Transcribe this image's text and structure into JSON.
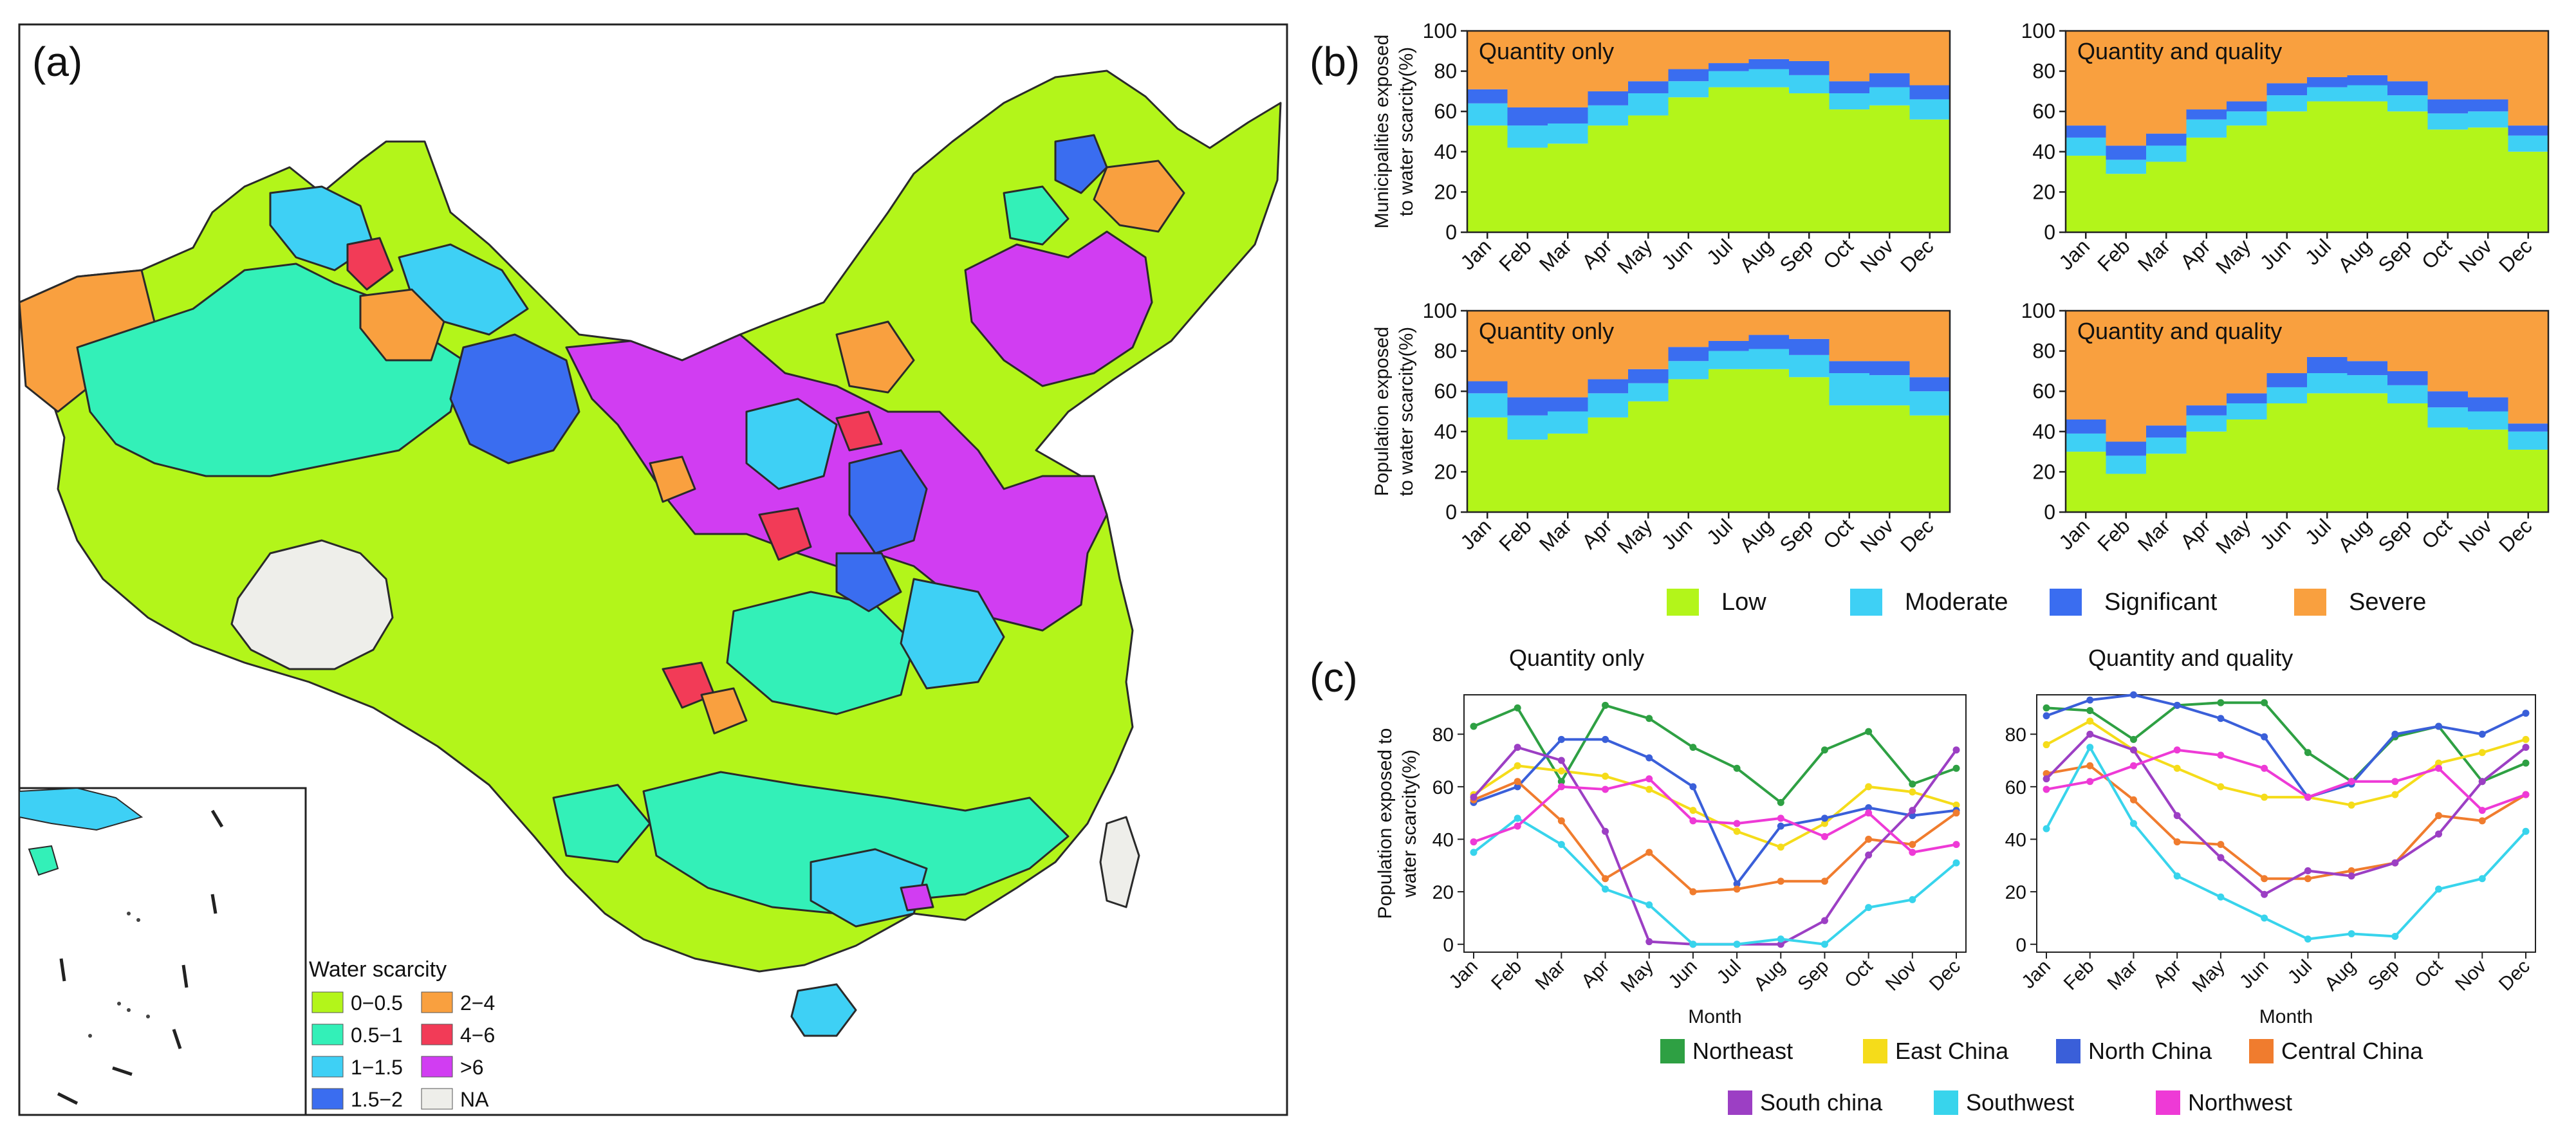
{
  "panel_labels": {
    "a": "(a)",
    "b": "(b)",
    "c": "(c)"
  },
  "map": {
    "legend_title": "Water scarcity",
    "legend_items": [
      {
        "label": "0−0.5",
        "color": "#b3f51a"
      },
      {
        "label": "2−4",
        "color": "#f9a03f"
      },
      {
        "label": "0.5−1",
        "color": "#33f0b8"
      },
      {
        "label": "4−6",
        "color": "#f23b57"
      },
      {
        "label": "1−1.5",
        "color": "#3ed0f5"
      },
      {
        "label": ">6",
        "color": "#d13df2"
      },
      {
        "label": "1.5−2",
        "color": "#3a6df0"
      },
      {
        "label": "NA",
        "color": "#eeeeea"
      }
    ]
  },
  "chart_data": [
    {
      "type": "bar",
      "stacked": true,
      "panel": "b",
      "title": "Quantity only",
      "ylabel": "Municipalities exposed to water scarcity(%)",
      "categories": [
        "Jan",
        "Feb",
        "Mar",
        "Apr",
        "May",
        "Jun",
        "Jul",
        "Aug",
        "Sep",
        "Oct",
        "Nov",
        "Dec"
      ],
      "ylim": [
        0,
        100
      ],
      "yticks": [
        0,
        20,
        40,
        60,
        80,
        100
      ],
      "series": [
        {
          "name": "Low",
          "color": "#b3f51a",
          "values": [
            53,
            42,
            44,
            53,
            58,
            67,
            72,
            72,
            69,
            61,
            63,
            56
          ]
        },
        {
          "name": "Moderate",
          "color": "#3ed0f5",
          "values": [
            11,
            11,
            10,
            10,
            11,
            8,
            8,
            9,
            9,
            8,
            9,
            10
          ]
        },
        {
          "name": "Significant",
          "color": "#3a6df0",
          "values": [
            7,
            9,
            8,
            7,
            6,
            6,
            4,
            5,
            7,
            6,
            7,
            7
          ]
        },
        {
          "name": "Severe",
          "color": "#f9a03f",
          "values": [
            29,
            38,
            38,
            30,
            25,
            19,
            16,
            14,
            15,
            25,
            21,
            27
          ]
        }
      ]
    },
    {
      "type": "bar",
      "stacked": true,
      "panel": "b",
      "title": "Quantity and quality",
      "ylabel": "",
      "categories": [
        "Jan",
        "Feb",
        "Mar",
        "Apr",
        "May",
        "Jun",
        "Jul",
        "Aug",
        "Sep",
        "Oct",
        "Nov",
        "Dec"
      ],
      "ylim": [
        0,
        100
      ],
      "yticks": [
        0,
        20,
        40,
        60,
        80,
        100
      ],
      "series": [
        {
          "name": "Low",
          "color": "#b3f51a",
          "values": [
            38,
            29,
            35,
            47,
            53,
            60,
            65,
            65,
            60,
            51,
            52,
            40
          ]
        },
        {
          "name": "Moderate",
          "color": "#3ed0f5",
          "values": [
            9,
            7,
            8,
            9,
            7,
            8,
            7,
            8,
            8,
            8,
            8,
            8
          ]
        },
        {
          "name": "Significant",
          "color": "#3a6df0",
          "values": [
            6,
            7,
            6,
            5,
            5,
            6,
            5,
            5,
            7,
            7,
            6,
            5
          ]
        },
        {
          "name": "Severe",
          "color": "#f9a03f",
          "values": [
            47,
            57,
            51,
            39,
            35,
            26,
            23,
            22,
            25,
            34,
            34,
            47
          ]
        }
      ]
    },
    {
      "type": "bar",
      "stacked": true,
      "panel": "b",
      "title": "Quantity only",
      "ylabel": "Population exposed to water scarcity(%)",
      "categories": [
        "Jan",
        "Feb",
        "Mar",
        "Apr",
        "May",
        "Jun",
        "Jul",
        "Aug",
        "Sep",
        "Oct",
        "Nov",
        "Dec"
      ],
      "ylim": [
        0,
        100
      ],
      "yticks": [
        0,
        20,
        40,
        60,
        80,
        100
      ],
      "series": [
        {
          "name": "Low",
          "color": "#b3f51a",
          "values": [
            47,
            36,
            39,
            47,
            55,
            66,
            71,
            71,
            67,
            53,
            53,
            48
          ]
        },
        {
          "name": "Moderate",
          "color": "#3ed0f5",
          "values": [
            12,
            12,
            11,
            12,
            9,
            9,
            9,
            10,
            11,
            16,
            15,
            12
          ]
        },
        {
          "name": "Significant",
          "color": "#3a6df0",
          "values": [
            6,
            9,
            7,
            7,
            7,
            7,
            5,
            7,
            8,
            6,
            7,
            7
          ]
        },
        {
          "name": "Severe",
          "color": "#f9a03f",
          "values": [
            35,
            43,
            43,
            34,
            29,
            18,
            15,
            12,
            14,
            25,
            25,
            33
          ]
        }
      ]
    },
    {
      "type": "bar",
      "stacked": true,
      "panel": "b",
      "title": "Quantity and quality",
      "ylabel": "",
      "categories": [
        "Jan",
        "Feb",
        "Mar",
        "Apr",
        "May",
        "Jun",
        "Jul",
        "Aug",
        "Sep",
        "Oct",
        "Nov",
        "Dec"
      ],
      "ylim": [
        0,
        100
      ],
      "yticks": [
        0,
        20,
        40,
        60,
        80,
        100
      ],
      "series": [
        {
          "name": "Low",
          "color": "#b3f51a",
          "values": [
            30,
            19,
            29,
            40,
            46,
            54,
            59,
            59,
            54,
            42,
            41,
            31
          ]
        },
        {
          "name": "Moderate",
          "color": "#3ed0f5",
          "values": [
            9,
            9,
            8,
            8,
            8,
            8,
            10,
            9,
            9,
            10,
            9,
            9
          ]
        },
        {
          "name": "Significant",
          "color": "#3a6df0",
          "values": [
            7,
            7,
            6,
            5,
            5,
            7,
            8,
            7,
            7,
            8,
            7,
            4
          ]
        },
        {
          "name": "Severe",
          "color": "#f9a03f",
          "values": [
            54,
            65,
            57,
            47,
            41,
            31,
            23,
            25,
            30,
            40,
            43,
            56
          ]
        }
      ]
    },
    {
      "type": "line",
      "panel": "c",
      "title": "Quantity only",
      "xlabel": "Month",
      "ylabel": "Population exposed to water scarcity(%)",
      "categories": [
        "Jan",
        "Feb",
        "Mar",
        "Apr",
        "May",
        "Jun",
        "Jul",
        "Aug",
        "Sep",
        "Oct",
        "Nov",
        "Dec"
      ],
      "ylim": [
        -3,
        95
      ],
      "yticks": [
        0,
        20,
        40,
        60,
        80
      ],
      "series": [
        {
          "name": "Northeast",
          "color": "#2ea043",
          "values": [
            83,
            90,
            62,
            91,
            86,
            75,
            67,
            54,
            74,
            81,
            61,
            67
          ]
        },
        {
          "name": "East China",
          "color": "#f5dc1a",
          "values": [
            57,
            68,
            66,
            64,
            59,
            51,
            43,
            37,
            46,
            60,
            58,
            53
          ]
        },
        {
          "name": "North China",
          "color": "#3a5fd9",
          "values": [
            54,
            60,
            78,
            78,
            71,
            60,
            23,
            45,
            48,
            52,
            49,
            51
          ]
        },
        {
          "name": "Central China",
          "color": "#f07c2e",
          "values": [
            55,
            62,
            47,
            25,
            35,
            20,
            21,
            24,
            24,
            40,
            38,
            50
          ]
        },
        {
          "name": "South china",
          "color": "#9c3fc4",
          "values": [
            56,
            75,
            70,
            43,
            1,
            0,
            0,
            0,
            9,
            34,
            51,
            74
          ]
        },
        {
          "name": "Southwest",
          "color": "#38d4ec",
          "values": [
            35,
            48,
            38,
            21,
            15,
            0,
            0,
            2,
            0,
            14,
            17,
            31
          ]
        },
        {
          "name": "Northwest",
          "color": "#ee3ad6",
          "values": [
            39,
            45,
            60,
            59,
            63,
            47,
            46,
            48,
            41,
            50,
            35,
            38
          ]
        }
      ]
    },
    {
      "type": "line",
      "panel": "c",
      "title": "Quantity and quality",
      "xlabel": "Month",
      "ylabel": "",
      "categories": [
        "Jan",
        "Feb",
        "Mar",
        "Apr",
        "May",
        "Jun",
        "Jul",
        "Aug",
        "Sep",
        "Oct",
        "Nov",
        "Dec"
      ],
      "ylim": [
        -3,
        95
      ],
      "yticks": [
        0,
        20,
        40,
        60,
        80
      ],
      "series": [
        {
          "name": "Northeast",
          "color": "#2ea043",
          "values": [
            90,
            89,
            78,
            91,
            92,
            92,
            73,
            62,
            79,
            83,
            62,
            69
          ]
        },
        {
          "name": "East China",
          "color": "#f5dc1a",
          "values": [
            76,
            85,
            74,
            67,
            60,
            56,
            56,
            53,
            57,
            69,
            73,
            78
          ]
        },
        {
          "name": "North China",
          "color": "#3a5fd9",
          "values": [
            87,
            93,
            95,
            91,
            86,
            79,
            56,
            61,
            80,
            83,
            80,
            88
          ]
        },
        {
          "name": "Central China",
          "color": "#f07c2e",
          "values": [
            65,
            68,
            55,
            39,
            38,
            25,
            25,
            28,
            31,
            49,
            47,
            57
          ]
        },
        {
          "name": "South china",
          "color": "#9c3fc4",
          "values": [
            63,
            80,
            74,
            49,
            33,
            19,
            28,
            26,
            31,
            42,
            62,
            75
          ]
        },
        {
          "name": "Southwest",
          "color": "#38d4ec",
          "values": [
            44,
            75,
            46,
            26,
            18,
            10,
            2,
            4,
            3,
            21,
            25,
            43
          ]
        },
        {
          "name": "Northwest",
          "color": "#ee3ad6",
          "values": [
            59,
            62,
            68,
            74,
            72,
            67,
            56,
            62,
            62,
            67,
            51,
            57
          ]
        }
      ]
    }
  ],
  "legend_b": [
    {
      "label": "Low",
      "color": "#b3f51a"
    },
    {
      "label": "Moderate",
      "color": "#3ed0f5"
    },
    {
      "label": "Significant",
      "color": "#3a6df0"
    },
    {
      "label": "Severe",
      "color": "#f9a03f"
    }
  ],
  "legend_c": [
    {
      "label": "Northeast",
      "color": "#2ea043"
    },
    {
      "label": "East China",
      "color": "#f5dc1a"
    },
    {
      "label": "North China",
      "color": "#3a5fd9"
    },
    {
      "label": "Central China",
      "color": "#f07c2e"
    },
    {
      "label": "South china",
      "color": "#9c3fc4"
    },
    {
      "label": "Southwest",
      "color": "#38d4ec"
    },
    {
      "label": "Northwest",
      "color": "#ee3ad6"
    }
  ]
}
